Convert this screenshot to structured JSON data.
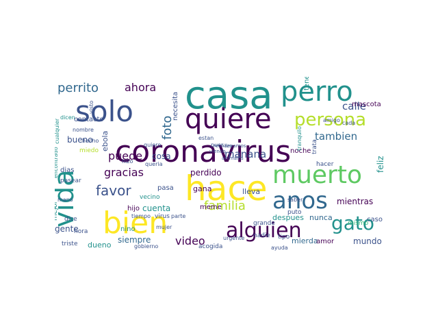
{
  "palette": {
    "dark_purple": "#440154",
    "indigo": "#3b528b",
    "blue": "#31688e",
    "teal": "#21918c",
    "green": "#35b779",
    "lime": "#5ec962",
    "yellow": "#fde725",
    "yellow_green": "#b5de2b"
  },
  "words": [
    {
      "text": "coronavirus",
      "color": "dark_purple"
    },
    {
      "text": "casa",
      "color": "teal"
    },
    {
      "text": "hace",
      "color": "yellow"
    },
    {
      "text": "perro",
      "color": "teal"
    },
    {
      "text": "quiere",
      "color": "dark_purple"
    },
    {
      "text": "solo",
      "color": "indigo"
    },
    {
      "text": "bien",
      "color": "yellow"
    },
    {
      "text": "muerto",
      "color": "lime"
    },
    {
      "text": "vida",
      "color": "teal"
    },
    {
      "text": "anos",
      "color": "blue"
    },
    {
      "text": "alguien",
      "color": "dark_purple"
    },
    {
      "text": "persona",
      "color": "yellow_green"
    },
    {
      "text": "gato",
      "color": "teal"
    },
    {
      "text": "perrito",
      "color": "blue"
    },
    {
      "text": "familia",
      "color": "yellow_green"
    },
    {
      "text": "favor",
      "color": "indigo"
    },
    {
      "text": "foto",
      "color": "blue"
    },
    {
      "text": "gracias",
      "color": "dark_purple"
    },
    {
      "text": "ahora",
      "color": "dark_purple"
    },
    {
      "text": "puede",
      "color": "dark_purple"
    },
    {
      "text": "tambien",
      "color": "blue"
    },
    {
      "text": "manana",
      "color": "indigo"
    },
    {
      "text": "calle",
      "color": "indigo"
    },
    {
      "text": "video",
      "color": "dark_purple"
    },
    {
      "text": "siempre",
      "color": "blue"
    },
    {
      "text": "gente",
      "color": "indigo"
    },
    {
      "text": "cuenta",
      "color": "teal"
    },
    {
      "text": "perdido",
      "color": "dark_purple"
    },
    {
      "text": "mientras",
      "color": "dark_purple"
    },
    {
      "text": "mundo",
      "color": "indigo"
    },
    {
      "text": "mierda",
      "color": "blue"
    },
    {
      "text": "despues",
      "color": "teal"
    },
    {
      "text": "nunca",
      "color": "blue"
    },
    {
      "text": "cosa",
      "color": "indigo"
    },
    {
      "text": "mascota",
      "color": "dark_purple"
    },
    {
      "text": "feliz",
      "color": "teal"
    },
    {
      "text": "bueno",
      "color": "indigo"
    },
    {
      "text": "gana",
      "color": "dark_purple"
    },
    {
      "text": "lleva",
      "color": "indigo"
    },
    {
      "text": "necesita",
      "color": "indigo"
    },
    {
      "text": "dueno",
      "color": "teal"
    },
    {
      "text": "acogida",
      "color": "indigo"
    },
    {
      "text": "caso",
      "color": "indigo"
    },
    {
      "text": "contacto",
      "color": "indigo"
    },
    {
      "text": "ebola",
      "color": "indigo"
    },
    {
      "text": "hijo",
      "color": "dark_purple"
    },
    {
      "text": "meme",
      "color": "dark_purple"
    },
    {
      "text": "pasa",
      "color": "indigo"
    },
    {
      "text": "noche",
      "color": "dark_purple"
    },
    {
      "text": "nadie",
      "color": "indigo"
    },
    {
      "text": "vecino",
      "color": "teal"
    },
    {
      "text": "tener",
      "color": "teal"
    },
    {
      "text": "mejor",
      "color": "teal"
    },
    {
      "text": "grande",
      "color": "indigo"
    },
    {
      "text": "triste",
      "color": "indigo"
    },
    {
      "text": "dias",
      "color": "indigo"
    },
    {
      "text": "pasear",
      "color": "indigo"
    },
    {
      "text": "miedo",
      "color": "yellow_green"
    },
    {
      "text": "dicen",
      "color": "teal"
    },
    {
      "text": "amor",
      "color": "dark_purple"
    },
    {
      "text": "hacer",
      "color": "indigo"
    },
    {
      "text": "tipo",
      "color": "indigo"
    },
    {
      "text": "puto",
      "color": "indigo"
    },
    {
      "text": "saber",
      "color": "indigo"
    },
    {
      "text": "nino",
      "color": "teal"
    },
    {
      "text": "dice",
      "color": "indigo"
    },
    {
      "text": "hora",
      "color": "indigo"
    },
    {
      "text": "tiempo",
      "color": "indigo"
    },
    {
      "text": "virus",
      "color": "indigo"
    },
    {
      "text": "mujer",
      "color": "indigo"
    },
    {
      "text": "parte",
      "color": "indigo"
    },
    {
      "text": "gobierno",
      "color": "indigo"
    },
    {
      "text": "estan",
      "color": "indigo"
    },
    {
      "text": "pues",
      "color": "indigo"
    },
    {
      "text": "llevamos",
      "color": "indigo"
    },
    {
      "text": "amigo",
      "color": "indigo"
    },
    {
      "text": "cada",
      "color": "indigo"
    },
    {
      "text": "quiero",
      "color": "indigo"
    },
    {
      "text": "queria",
      "color": "indigo"
    },
    {
      "text": "hizo",
      "color": "indigo"
    },
    {
      "text": "nombre",
      "color": "indigo"
    },
    {
      "text": "mano",
      "color": "indigo"
    },
    {
      "text": "trata",
      "color": "indigo"
    },
    {
      "text": "visto",
      "color": "indigo"
    },
    {
      "text": "cualquier",
      "color": "teal"
    },
    {
      "text": "encontrado",
      "color": "teal"
    },
    {
      "text": "mismo",
      "color": "green"
    },
    {
      "text": "ayuda",
      "color": "indigo"
    },
    {
      "text": "urgente",
      "color": "indigo"
    },
    {
      "text": "hecho",
      "color": "indigo"
    },
    {
      "text": "rechazo",
      "color": "indigo"
    },
    {
      "text": "viendo",
      "color": "indigo"
    },
    {
      "text": "animales",
      "color": "indigo"
    },
    {
      "text": "tranquilo",
      "color": "teal"
    },
    {
      "text": "atencion",
      "color": "lime"
    }
  ]
}
